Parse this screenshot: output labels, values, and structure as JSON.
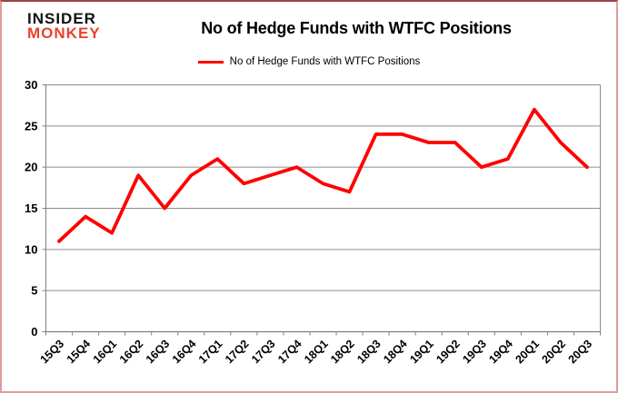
{
  "header": {
    "logo_line1": "INSIDER",
    "logo_line2": "MONKEY",
    "title": "No of Hedge Funds with WTFC Positions"
  },
  "legend": {
    "label": "No of Hedge Funds with WTFC Positions"
  },
  "colors": {
    "series": "#ff0000",
    "logo_accent": "#e8432d",
    "grid": "#8c8c8c",
    "axis": "#7f7f7f",
    "border": "#e09c9c",
    "text": "#000000"
  },
  "chart_data": {
    "type": "line",
    "title": "No of Hedge Funds with WTFC Positions",
    "categories": [
      "15Q3",
      "15Q4",
      "16Q1",
      "16Q2",
      "16Q3",
      "16Q4",
      "17Q1",
      "17Q2",
      "17Q3",
      "17Q4",
      "18Q1",
      "18Q2",
      "18Q3",
      "18Q4",
      "19Q1",
      "19Q2",
      "19Q3",
      "19Q4",
      "20Q1",
      "20Q2",
      "20Q3"
    ],
    "series": [
      {
        "name": "No of Hedge Funds with WTFC Positions",
        "color": "#ff0000",
        "values": [
          11,
          14,
          12,
          19,
          15,
          19,
          21,
          18,
          19,
          20,
          18,
          17,
          24,
          24,
          23,
          23,
          20,
          21,
          27,
          23,
          20
        ]
      }
    ],
    "xlabel": "",
    "ylabel": "",
    "ylim": [
      0,
      30
    ],
    "yticks": [
      0,
      5,
      10,
      15,
      20,
      25,
      30
    ],
    "grid": "horizontal",
    "legend_position": "top"
  }
}
